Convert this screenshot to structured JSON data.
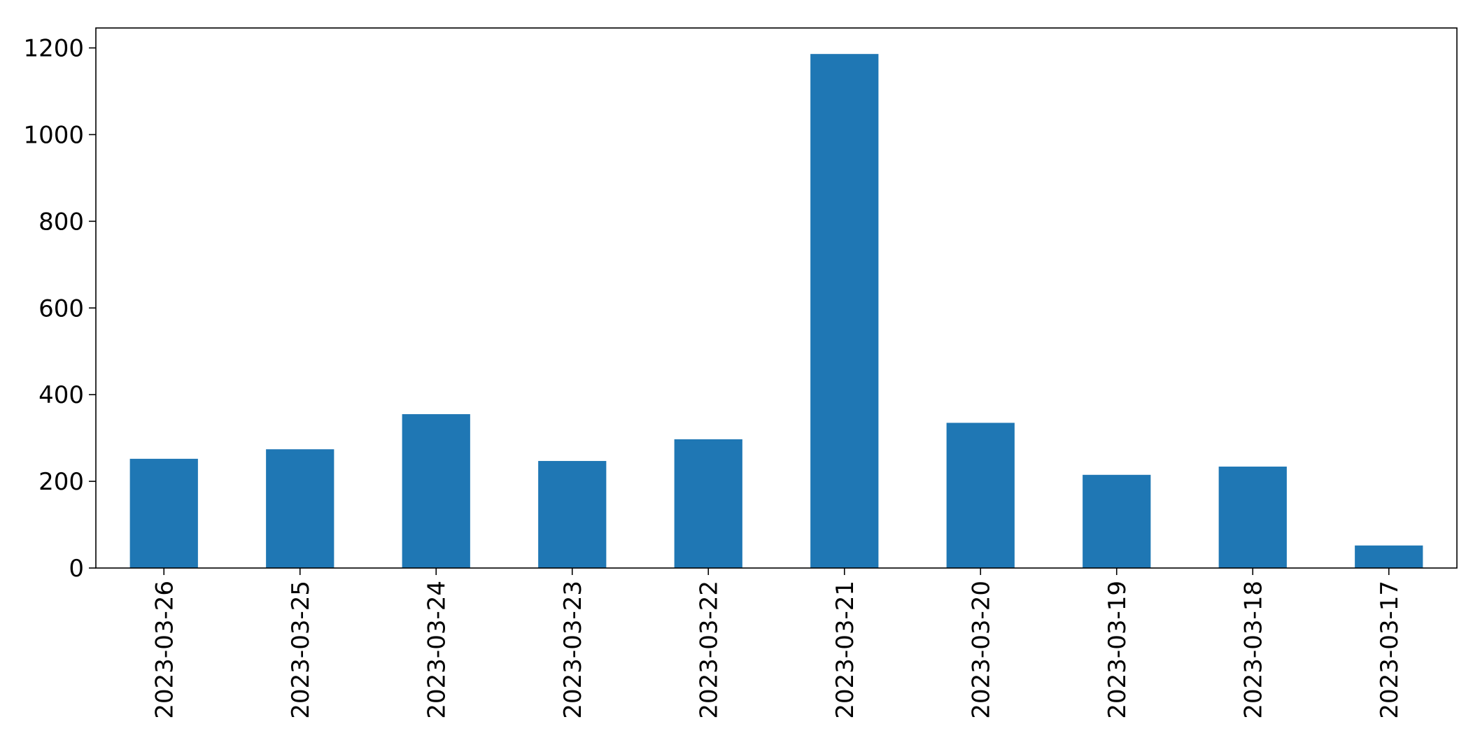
{
  "chart_data": {
    "type": "bar",
    "title": "",
    "xlabel": "",
    "ylabel": "",
    "categories": [
      "2023-03-26",
      "2023-03-25",
      "2023-03-24",
      "2023-03-23",
      "2023-03-22",
      "2023-03-21",
      "2023-03-20",
      "2023-03-19",
      "2023-03-18",
      "2023-03-17"
    ],
    "values": [
      252,
      274,
      355,
      247,
      297,
      1186,
      335,
      215,
      234,
      52
    ],
    "ylim": [
      0,
      1246
    ],
    "yticks": [
      0,
      200,
      400,
      600,
      800,
      1000,
      1200
    ],
    "grid": false,
    "legend": "none",
    "bar_color": "#1f77b4",
    "axis_color": "#000000"
  }
}
